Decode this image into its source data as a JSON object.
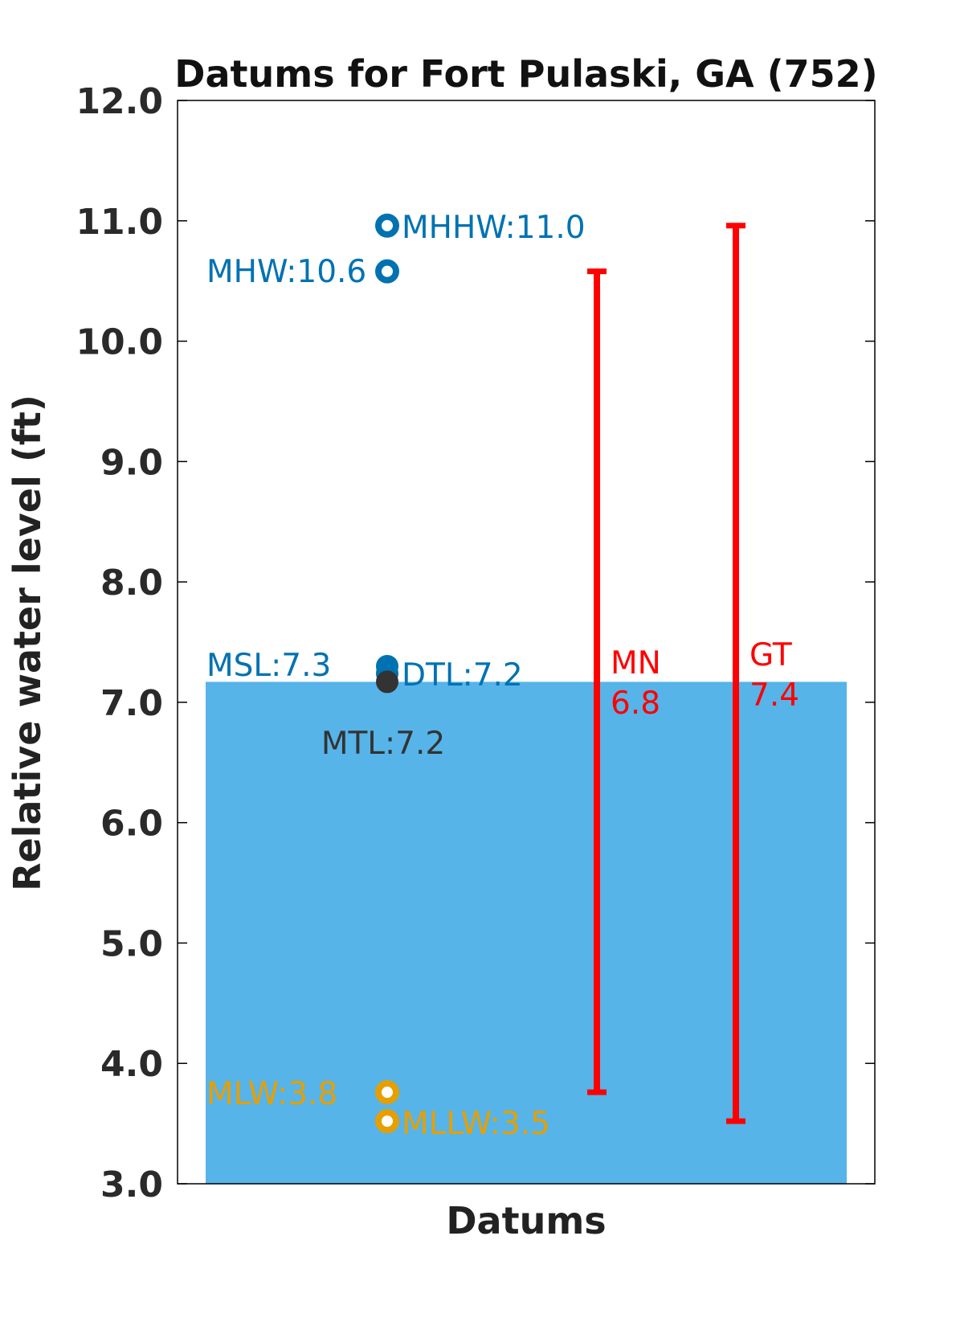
{
  "chart_data": {
    "type": "bar",
    "title": "Datums for Fort Pulaski, GA (752)",
    "xlabel": "Datums",
    "ylabel": "Relative water level (ft)",
    "ylim": [
      3.0,
      12.0
    ],
    "yticks": [
      "3.0",
      "4.0",
      "5.0",
      "6.0",
      "7.0",
      "8.0",
      "9.0",
      "10.0",
      "11.0",
      "12.0"
    ],
    "grid": false,
    "bar": {
      "value": 7.17,
      "color": "#56B4E9"
    },
    "datums": [
      {
        "name": "MHHW",
        "label": "MHHW:11.0",
        "value": 10.96,
        "color": "#0072B2",
        "marker": "open",
        "label_side": "right"
      },
      {
        "name": "MHW",
        "label": "MHW:10.6",
        "value": 10.58,
        "color": "#0072B2",
        "marker": "open",
        "label_side": "left"
      },
      {
        "name": "MSL",
        "label": "MSL:7.3",
        "value": 7.3,
        "color": "#0072B2",
        "marker": "filled",
        "label_side": "left"
      },
      {
        "name": "DTL",
        "label": "DTL:7.2",
        "value": 7.24,
        "color": "#0072B2",
        "marker": "filled",
        "label_side": "right"
      },
      {
        "name": "MTL",
        "label": "MTL:7.2",
        "value": 7.17,
        "color": "#333333",
        "marker": "filled",
        "label_side": "below"
      },
      {
        "name": "MLW",
        "label": "MLW:3.8",
        "value": 3.76,
        "color": "#E69F00",
        "marker": "open",
        "label_side": "left"
      },
      {
        "name": "MLLW",
        "label": "MLLW:3.5",
        "value": 3.52,
        "color": "#E69F00",
        "marker": "open",
        "label_side": "right"
      }
    ],
    "ranges": [
      {
        "name": "MN",
        "line1": "MN",
        "line2": "6.8",
        "low": 3.76,
        "high": 10.58,
        "color": "#FF0000"
      },
      {
        "name": "GT",
        "line1": "GT",
        "line2": "7.4",
        "low": 3.52,
        "high": 10.96,
        "color": "#FF0000"
      }
    ]
  }
}
